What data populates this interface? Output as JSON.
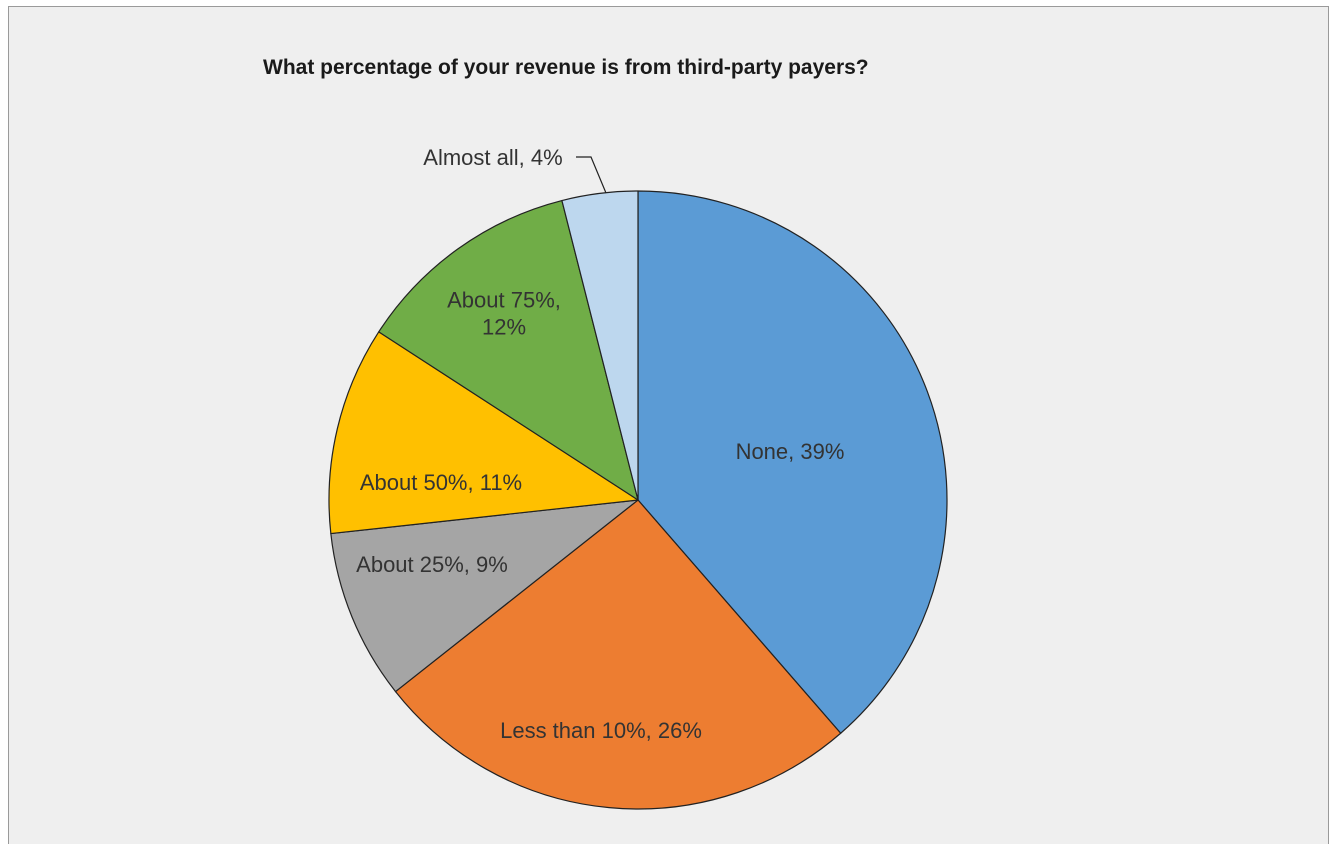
{
  "chart_data": {
    "type": "pie",
    "title": "What percentage of your revenue is from third-party payers?",
    "slices": [
      {
        "label": "None",
        "value": 39,
        "color": "#5b9bd5",
        "label_lines": [
          "None, 39%"
        ]
      },
      {
        "label": "Less than 10%",
        "value": 26,
        "color": "#ed7d31",
        "label_lines": [
          "Less than 10%, 26%"
        ]
      },
      {
        "label": "About 25%",
        "value": 9,
        "color": "#a5a5a5",
        "label_lines": [
          "About 25%, 9%"
        ]
      },
      {
        "label": "About 50%",
        "value": 11,
        "color": "#ffc000",
        "label_lines": [
          "About 50%, 11%"
        ]
      },
      {
        "label": "About 75%",
        "value": 12,
        "color": "#70ad47",
        "label_lines": [
          "About 75%,",
          "12%"
        ]
      },
      {
        "label": "Almost all",
        "value": 4,
        "color": "#bdd7ee",
        "label_lines": [
          "Almost all, 4%"
        ]
      }
    ],
    "start_angle": "12 o'clock",
    "direction": "clockwise",
    "legend": "none",
    "outline_color": "#222222",
    "background_color": "#efefef"
  }
}
